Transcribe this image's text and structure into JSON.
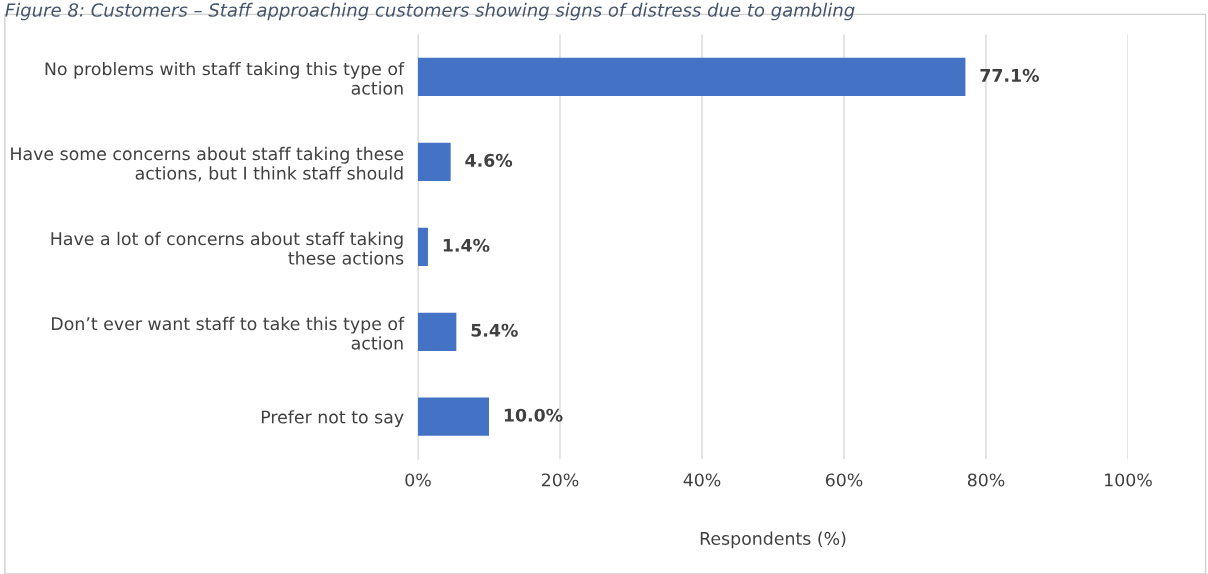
{
  "chart_data": {
    "type": "bar",
    "orientation": "horizontal",
    "title": "Figure 8: Customers – Staff approaching customers showing signs of distress due to gambling",
    "categories": [
      "No problems with staff taking this type of action",
      "Have some concerns about staff taking these actions, but I think staff should",
      "Have a lot of concerns about staff taking these actions",
      "Don’t ever want staff to take this type of action",
      "Prefer not to say"
    ],
    "values": [
      77.1,
      4.6,
      1.4,
      5.4,
      10.0
    ],
    "value_labels": [
      "77.1%",
      "4.6%",
      "1.4%",
      "5.4%",
      "10.0%"
    ],
    "color": "#4472c4",
    "xlim": [
      0,
      100
    ],
    "xticks": [
      {
        "value": 0,
        "label": "0%"
      },
      {
        "value": 20,
        "label": "20%"
      },
      {
        "value": 40,
        "label": "40%"
      },
      {
        "value": 60,
        "label": "60%"
      },
      {
        "value": 80,
        "label": "80%"
      },
      {
        "value": 100,
        "label": "100%"
      }
    ],
    "xlabel": "Respondents (%)",
    "grid": "x"
  }
}
